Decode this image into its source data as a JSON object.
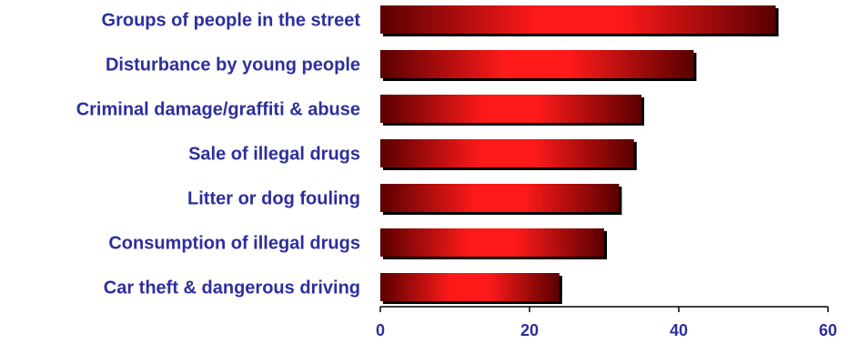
{
  "chart_data": {
    "type": "bar",
    "orientation": "horizontal",
    "categories": [
      "Groups of people in the street",
      "Disturbance by young people",
      "Criminal damage/graffiti & abuse",
      "Sale of illegal drugs",
      "Litter or dog fouling",
      "Consumption of illegal drugs",
      "Car theft & dangerous driving"
    ],
    "values": [
      53,
      42,
      35,
      34,
      32,
      30,
      24
    ],
    "xlim": [
      0,
      60
    ],
    "xticks": [
      "0",
      "20",
      "40",
      "60"
    ],
    "grid": false,
    "legend": "none",
    "colors": {
      "bar_dark": "#5a0000",
      "bar_bright": "#ff1a1a",
      "label": "#2e2e9c",
      "axis": "#000000"
    }
  }
}
